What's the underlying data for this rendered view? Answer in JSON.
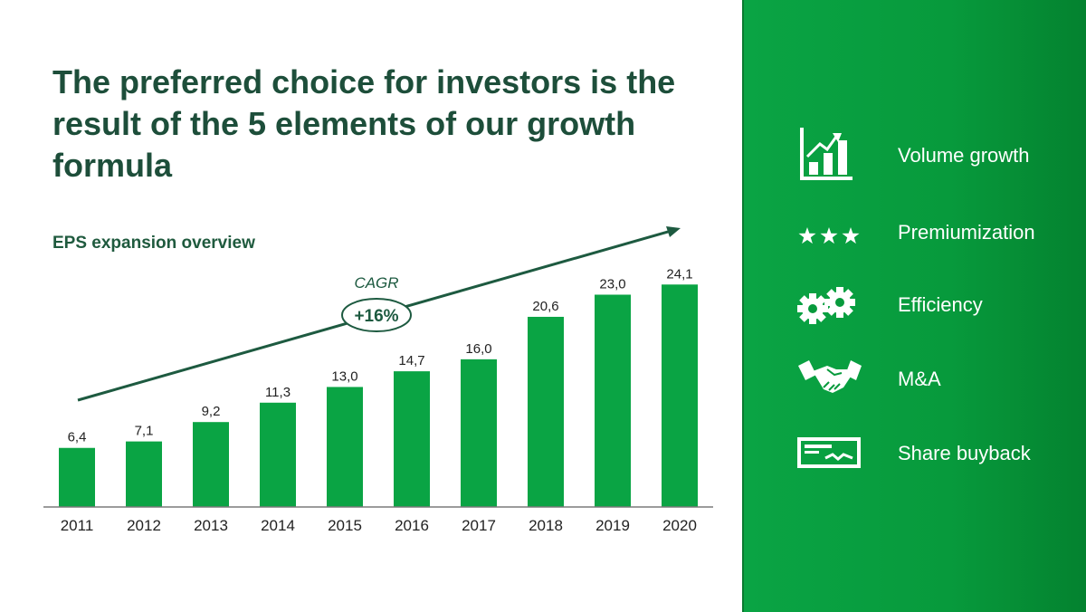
{
  "title": "The preferred choice for investors is the result of the 5 elements of our growth formula",
  "subtitle": "EPS expansion overview",
  "chart_data": {
    "type": "bar",
    "categories": [
      "2011",
      "2012",
      "2013",
      "2014",
      "2015",
      "2016",
      "2017",
      "2018",
      "2019",
      "2020"
    ],
    "values": [
      6.4,
      7.1,
      9.2,
      11.3,
      13.0,
      14.7,
      16.0,
      20.6,
      23.0,
      24.1
    ],
    "value_labels": [
      "6,4",
      "7,1",
      "9,2",
      "11,3",
      "13,0",
      "14,7",
      "16,0",
      "20,6",
      "23,0",
      "24,1"
    ],
    "ylim": [
      0,
      25.5
    ],
    "grid": false,
    "bar_color": "#0aa444",
    "annotation": {
      "label": "CAGR",
      "value": "+16%"
    }
  },
  "features": [
    {
      "icon": "bar-chart-growth-icon",
      "label": "Volume growth"
    },
    {
      "icon": "three-stars-icon",
      "label": "Premiumization"
    },
    {
      "icon": "gears-icon",
      "label": "Efficiency"
    },
    {
      "icon": "handshake-icon",
      "label": "M&A"
    },
    {
      "icon": "check-document-icon",
      "label": "Share buyback"
    }
  ],
  "colors": {
    "accent": "#0aa444",
    "title": "#1d4e3a",
    "panel": "#079a3c"
  }
}
